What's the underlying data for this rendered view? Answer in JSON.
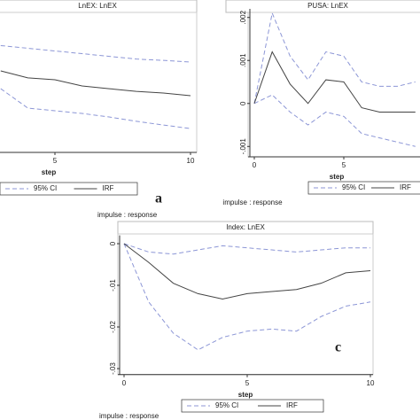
{
  "texts": [
    "impulse : response",
    "impulse : response",
    "impulse : response"
  ],
  "chart_data": [
    {
      "type": "line",
      "title": "LnEX: LnEX",
      "xlabel": "step",
      "annotation": "a",
      "x": [
        3,
        4,
        5,
        6,
        7,
        8,
        9,
        10
      ],
      "xlim": [
        0,
        10
      ],
      "xticks": [
        5,
        10
      ],
      "ylim": [
        -0.04,
        0.01
      ],
      "series": [
        {
          "name": "95% CI",
          "color": "#8c96d6",
          "dashed": true,
          "lower": [
            -0.017,
            -0.0242,
            -0.0252,
            -0.0262,
            -0.0275,
            -0.0291,
            -0.0305,
            -0.0318
          ],
          "upper": [
            -0.001,
            -0.002,
            -0.003,
            -0.004,
            -0.005,
            -0.006,
            -0.0065,
            -0.0071
          ]
        },
        {
          "name": "IRF",
          "color": "#444444",
          "values": [
            -0.0104,
            -0.013,
            -0.0137,
            -0.016,
            -0.017,
            -0.018,
            -0.0186,
            -0.0196
          ]
        }
      ]
    },
    {
      "type": "line",
      "title": "PUSA: LnEX",
      "xlabel": "step",
      "x": [
        0,
        1,
        2,
        3,
        4,
        5,
        6,
        7,
        8,
        9
      ],
      "xlim": [
        0,
        10
      ],
      "xticks": [
        0,
        5
      ],
      "ylim": [
        -0.0012,
        0.0022
      ],
      "yticks": [
        {
          "value": 0.002,
          "label": ".002"
        },
        {
          "value": 0.001,
          "label": ".001"
        },
        0,
        {
          "value": -0.001,
          "label": "-.001"
        }
      ],
      "series": [
        {
          "name": "95% CI",
          "color": "#8c96d6",
          "dashed": true,
          "lower": [
            0,
            0.0002,
            -0.0002,
            -0.0005,
            -0.0002,
            -0.0003,
            -0.0007,
            -0.0008,
            -0.0009,
            -0.001
          ],
          "upper": [
            0,
            0.0021,
            0.0011,
            0.00055,
            0.0012,
            0.0011,
            0.0005,
            0.0004,
            0.0004,
            0.0005
          ]
        },
        {
          "name": "IRF",
          "color": "#444444",
          "values": [
            0,
            0.0012,
            0.00045,
            0,
            0.00055,
            0.0005,
            -0.0001,
            -0.0002,
            -0.0002,
            -0.0002
          ]
        }
      ]
    },
    {
      "type": "line",
      "title": "Index: LnEX",
      "xlabel": "step",
      "annotation": "c",
      "x": [
        0,
        1,
        2,
        3,
        4,
        5,
        6,
        7,
        8,
        9,
        10
      ],
      "xlim": [
        0,
        10
      ],
      "xticks": [
        0,
        5,
        10
      ],
      "ylim": [
        -0.031,
        0.002
      ],
      "yticks": [
        0,
        {
          "value": -0.01,
          "label": "-.01"
        },
        {
          "value": -0.02,
          "label": "-.02"
        },
        {
          "value": -0.03,
          "label": "-.03"
        }
      ],
      "series": [
        {
          "name": "95% CI",
          "color": "#8c96d6",
          "dashed": true,
          "lower": [
            0,
            -0.014,
            -0.0215,
            -0.0255,
            -0.0225,
            -0.021,
            -0.0205,
            -0.021,
            -0.0175,
            -0.015,
            -0.014
          ],
          "upper": [
            0,
            -0.002,
            -0.0025,
            -0.0015,
            -0.0005,
            -0.001,
            -0.0015,
            -0.002,
            -0.0015,
            -0.001,
            -0.001
          ]
        },
        {
          "name": "IRF",
          "color": "#444444",
          "values": [
            0,
            -0.0045,
            -0.0095,
            -0.012,
            -0.0133,
            -0.012,
            -0.0115,
            -0.011,
            -0.0095,
            -0.007,
            -0.0065
          ]
        }
      ]
    }
  ]
}
